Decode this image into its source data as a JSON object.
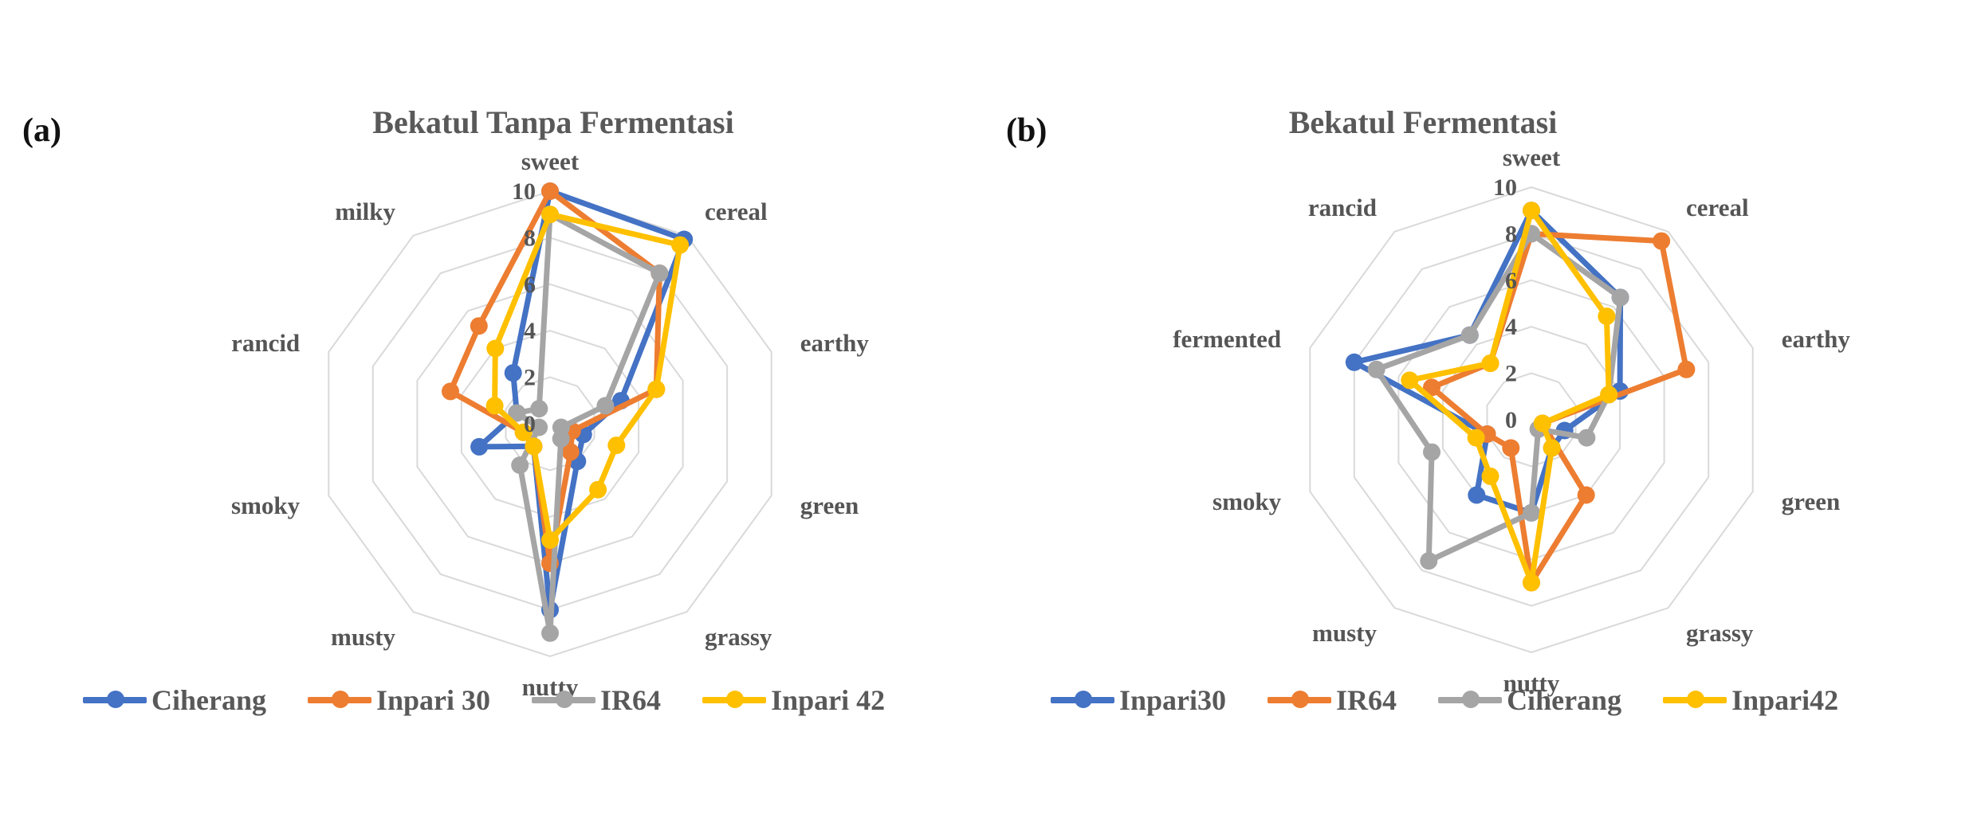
{
  "panels": [
    {
      "label": "(a)",
      "colors": {
        "Ciherang": "#4472C4",
        "Inpari 30": "#ED7D31",
        "IR64": "#A5A5A5",
        "Inpari 42": "#FFC000"
      },
      "chart_data": {
        "type": "radar",
        "title": "Bekatul Tanpa Fermentasi",
        "categories": [
          "sweet",
          "cereal",
          "earthy",
          "green",
          "grassy",
          "nutty",
          "musty",
          "smoky",
          "rancid",
          "milky"
        ],
        "rlim": [
          0,
          10
        ],
        "ticks": [
          "0",
          "2",
          "4",
          "6",
          "8",
          "10"
        ],
        "legend_position": "bottom",
        "series": [
          {
            "name": "Ciherang",
            "values": [
              10,
              9.8,
              3.2,
              1.5,
              2.0,
              8.0,
              1.2,
              3.2,
              1.5,
              2.7
            ]
          },
          {
            "name": "Inpari 30",
            "values": [
              10,
              8.0,
              4.8,
              1.0,
              1.5,
              6.0,
              1.2,
              1.2,
              4.5,
              5.2
            ]
          },
          {
            "name": "IR64",
            "values": [
              9.0,
              8.0,
              2.5,
              0.5,
              0.8,
              9.0,
              2.2,
              0.5,
              1.5,
              0.8
            ]
          },
          {
            "name": "Inpari 42",
            "values": [
              9.0,
              9.5,
              4.8,
              3.0,
              3.5,
              5.0,
              1.2,
              1.2,
              2.5,
              4.0
            ]
          }
        ]
      }
    },
    {
      "label": "(b)",
      "colors": {
        "Inpari30": "#4472C4",
        "IR64": "#ED7D31",
        "Ciherang": "#A5A5A5",
        "Inpari42": "#FFC000"
      },
      "chart_data": {
        "type": "radar",
        "title": "Bekatul Fermentasi",
        "categories": [
          "sweet",
          "cereal",
          "earthy",
          "green",
          "grassy",
          "nutty",
          "musty",
          "smoky",
          "fermented",
          "rancid"
        ],
        "rlim": [
          0,
          10
        ],
        "ticks": [
          "0",
          "2",
          "4",
          "6",
          "8",
          "10"
        ],
        "legend_position": "bottom",
        "series": [
          {
            "name": "Inpari30",
            "values": [
              9.0,
              6.5,
              4.0,
              1.5,
              1.5,
              4.0,
              4.0,
              2.0,
              8.0,
              4.5
            ]
          },
          {
            "name": "IR64",
            "values": [
              8.0,
              9.5,
              7.0,
              0.5,
              4.0,
              7.0,
              1.5,
              2.0,
              4.5,
              3.0
            ]
          },
          {
            "name": "Ciherang",
            "values": [
              8.0,
              6.5,
              3.5,
              2.5,
              0.5,
              4.0,
              7.5,
              4.5,
              7.0,
              4.5
            ]
          },
          {
            "name": "Inpari42",
            "values": [
              9.0,
              5.5,
              3.5,
              0.5,
              1.5,
              7.0,
              3.0,
              2.5,
              5.5,
              3.0
            ]
          }
        ]
      }
    }
  ]
}
